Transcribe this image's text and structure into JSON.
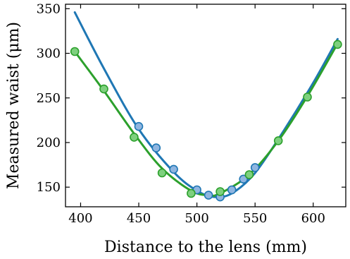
{
  "chart_data": {
    "type": "scatter",
    "title": "",
    "xlabel": "Distance to the lens (mm)",
    "ylabel": "Measured waist (μm)",
    "xlim": [
      387,
      628
    ],
    "ylim": [
      128,
      355
    ],
    "xticks": [
      400,
      450,
      500,
      550,
      600
    ],
    "yticks": [
      150,
      200,
      250,
      300,
      350
    ],
    "grid": false,
    "legend": "none",
    "series": [
      {
        "marker_color": "#8fb5e0",
        "line_color": "#1f77b4",
        "points": [
          [
            450,
            218
          ],
          [
            465,
            194
          ],
          [
            480,
            170
          ],
          [
            500,
            147
          ],
          [
            510,
            141
          ],
          [
            520,
            139
          ],
          [
            530,
            147
          ],
          [
            540,
            159
          ],
          [
            550,
            172
          ]
        ],
        "fit": [
          [
            395,
            346
          ],
          [
            420,
            283
          ],
          [
            450,
            215
          ],
          [
            480,
            167
          ],
          [
            500,
            146
          ],
          [
            515,
            139
          ],
          [
            530,
            143
          ],
          [
            550,
            166
          ],
          [
            575,
            214
          ],
          [
            600,
            267
          ],
          [
            621,
            316
          ]
        ]
      },
      {
        "marker_color": "#7ed07e",
        "line_color": "#2ca02c",
        "points": [
          [
            395,
            302
          ],
          [
            420,
            260
          ],
          [
            446,
            206
          ],
          [
            470,
            166
          ],
          [
            495,
            143
          ],
          [
            520,
            145
          ],
          [
            545,
            164
          ],
          [
            570,
            202
          ],
          [
            595,
            251
          ],
          [
            621,
            310
          ]
        ],
        "fit": [
          [
            395,
            302
          ],
          [
            420,
            258
          ],
          [
            446,
            210
          ],
          [
            470,
            171
          ],
          [
            495,
            146
          ],
          [
            510,
            141
          ],
          [
            520,
            143
          ],
          [
            545,
            164
          ],
          [
            570,
            202
          ],
          [
            595,
            252
          ],
          [
            621,
            311
          ]
        ]
      }
    ]
  }
}
